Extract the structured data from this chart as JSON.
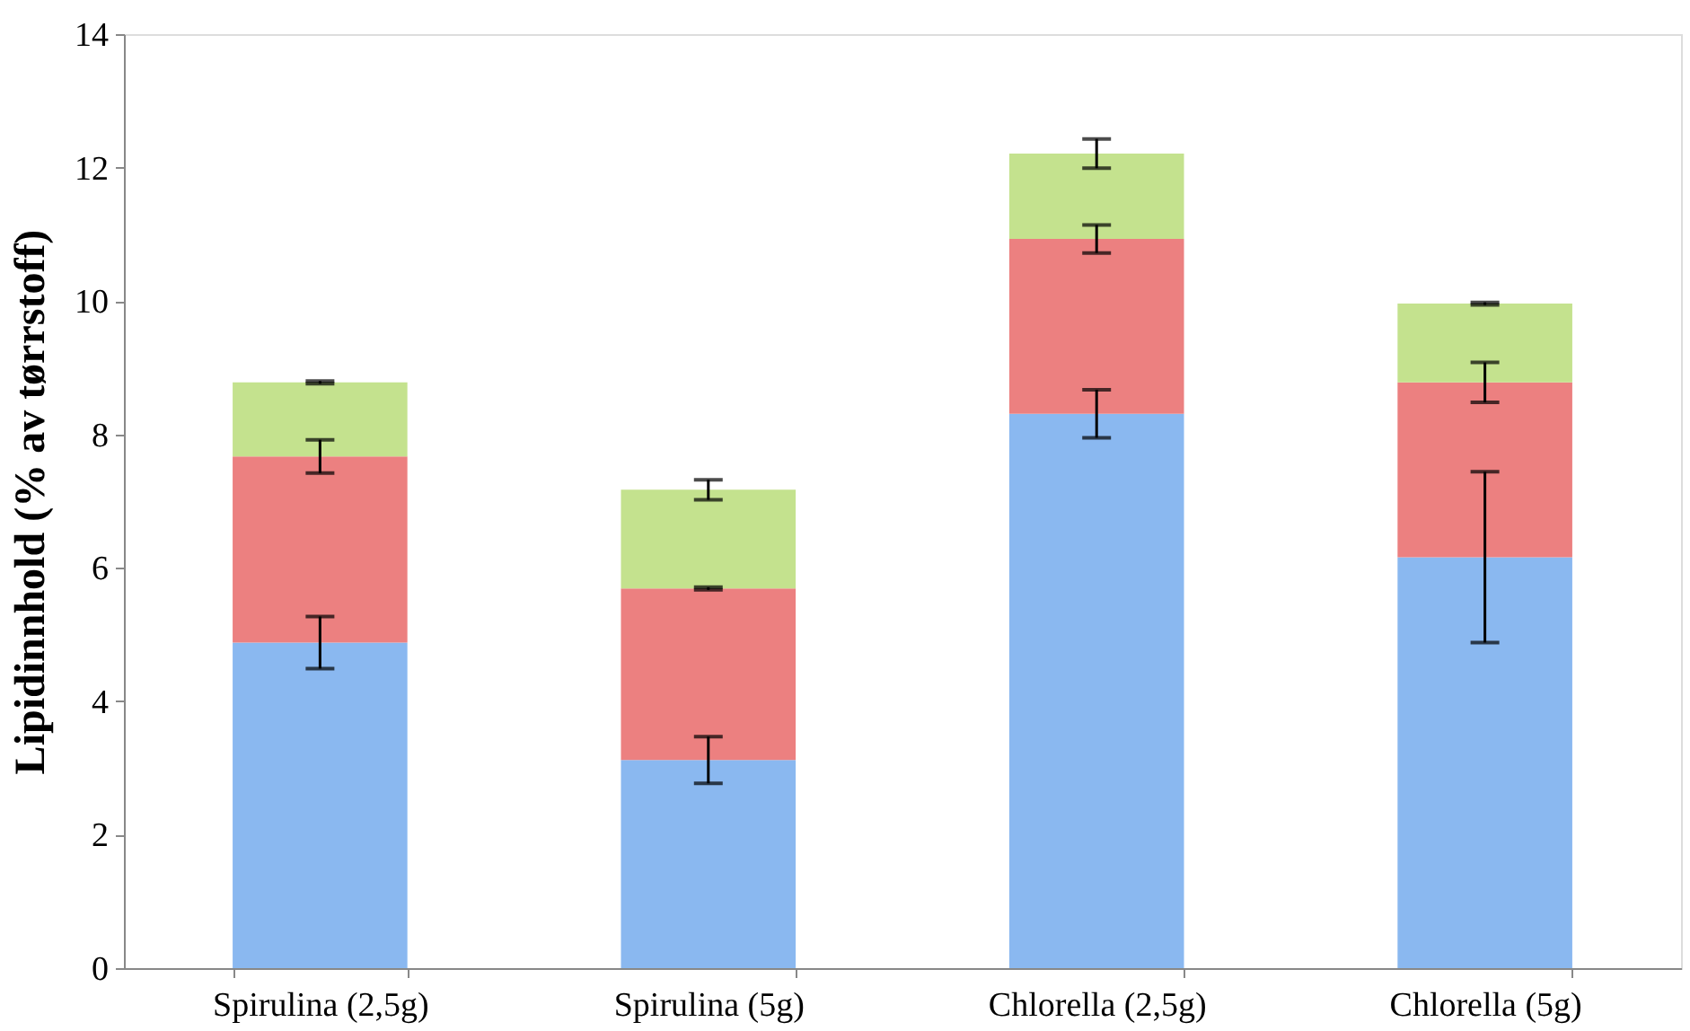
{
  "chart_data": {
    "type": "bar",
    "stacked": true,
    "ylabel": "Lipidinnhold (% av tørrstoff)",
    "categories": [
      "Spirulina (2,5g)",
      "Spirulina (5g)",
      "Chlorella (2,5g)",
      "Chlorella (5g)"
    ],
    "series": [
      {
        "color": "#8ab8f0",
        "values": [
          4.88,
          3.12,
          8.31,
          6.16
        ],
        "errors": [
          0.39,
          0.35,
          0.36,
          1.28
        ]
      },
      {
        "color": "#ec8080",
        "values": [
          2.79,
          2.57,
          2.62,
          2.62
        ],
        "errors": [
          0.25,
          0.02,
          0.21,
          0.3
        ]
      },
      {
        "color": "#c4e28e",
        "values": [
          1.11,
          1.48,
          1.28,
          1.18
        ],
        "errors": [
          0.02,
          0.15,
          0.22,
          0.02
        ]
      }
    ],
    "ylim": [
      0,
      14
    ],
    "yticks": [
      0,
      2,
      4,
      6,
      8,
      10,
      12,
      14
    ],
    "grid": false
  }
}
